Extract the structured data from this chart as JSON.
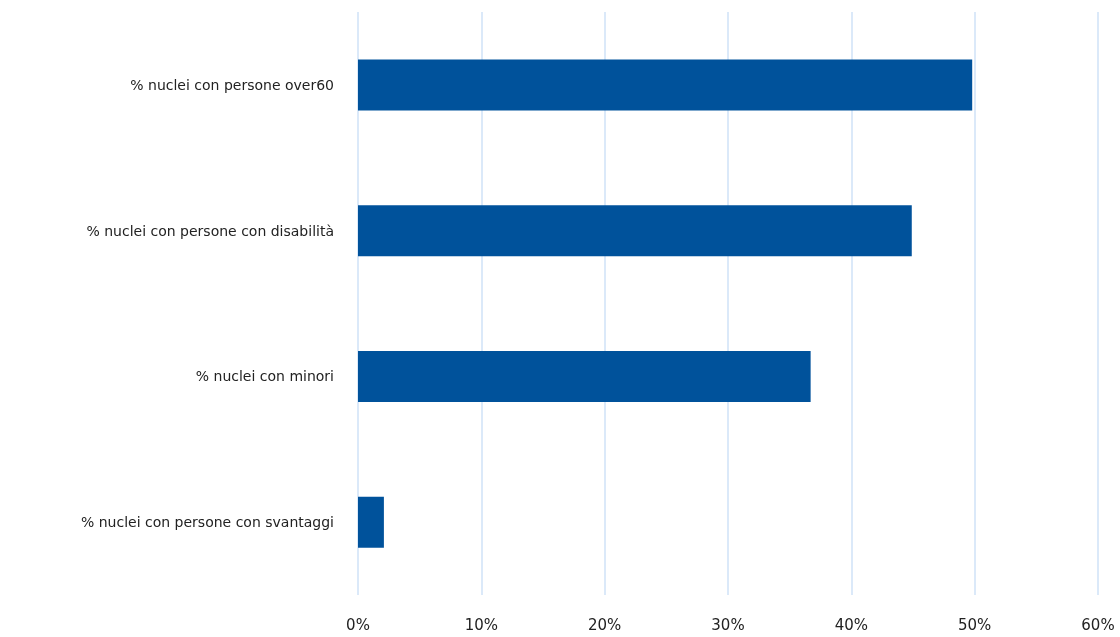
{
  "chart_data": {
    "type": "bar",
    "orientation": "horizontal",
    "categories": [
      "% nuclei con persone over60",
      "% nuclei con persone con disabilità",
      "% nuclei con minori",
      "% nuclei con persone con svantaggi"
    ],
    "values": [
      49.8,
      44.9,
      36.7,
      2.1
    ],
    "color": "#00529b",
    "xlim": [
      0,
      60
    ],
    "xticks": [
      {
        "value": 0,
        "label": "0%"
      },
      {
        "value": 10,
        "label": "10%"
      },
      {
        "value": 20,
        "label": "20%"
      },
      {
        "value": 30,
        "label": "30%"
      },
      {
        "value": 40,
        "label": "40%"
      },
      {
        "value": 50,
        "label": "50%"
      },
      {
        "value": 60,
        "label": "60%"
      }
    ],
    "grid": "x"
  }
}
